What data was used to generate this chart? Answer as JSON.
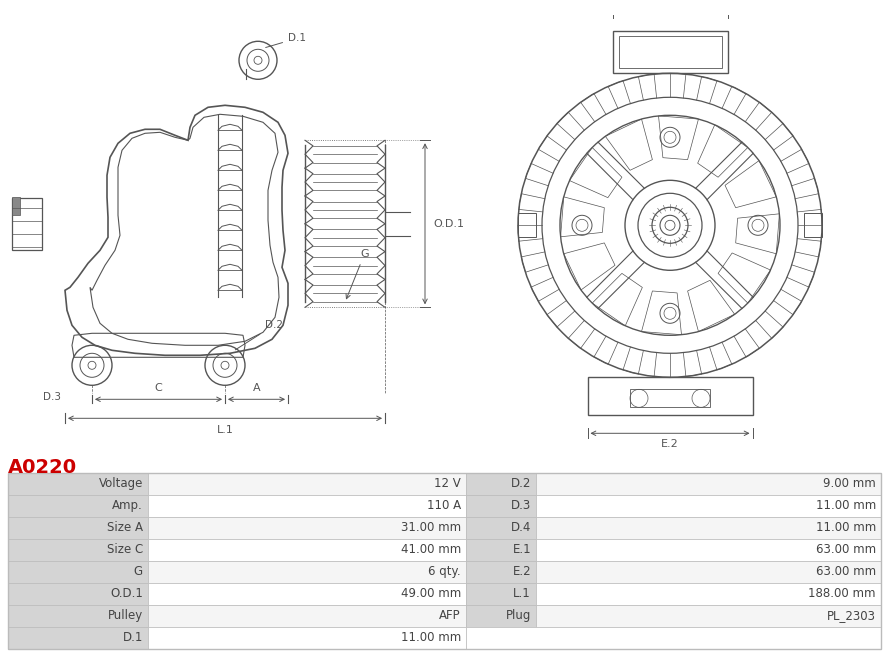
{
  "title": "A0220",
  "title_color": "#cc0000",
  "table_left_headers": [
    "Voltage",
    "Amp.",
    "Size A",
    "Size C",
    "G",
    "O.D.1",
    "Pulley",
    "D.1"
  ],
  "table_left_values": [
    "12 V",
    "110 A",
    "31.00 mm",
    "41.00 mm",
    "6 qty.",
    "49.00 mm",
    "AFP",
    "11.00 mm"
  ],
  "table_right_headers": [
    "D.2",
    "D.3",
    "D.4",
    "E.1",
    "E.2",
    "L.1",
    "Plug",
    ""
  ],
  "table_right_values": [
    "9.00 mm",
    "11.00 mm",
    "11.00 mm",
    "63.00 mm",
    "63.00 mm",
    "188.00 mm",
    "PL_2303",
    ""
  ],
  "bg_color": "#ffffff",
  "table_header_bg": "#d4d4d4",
  "table_value_bg_odd": "#f5f5f5",
  "table_value_bg_even": "#ffffff",
  "border_color": "#bbbbbb",
  "text_color": "#444444",
  "diagram_color": "#555555",
  "diagram_lw": 1.0
}
